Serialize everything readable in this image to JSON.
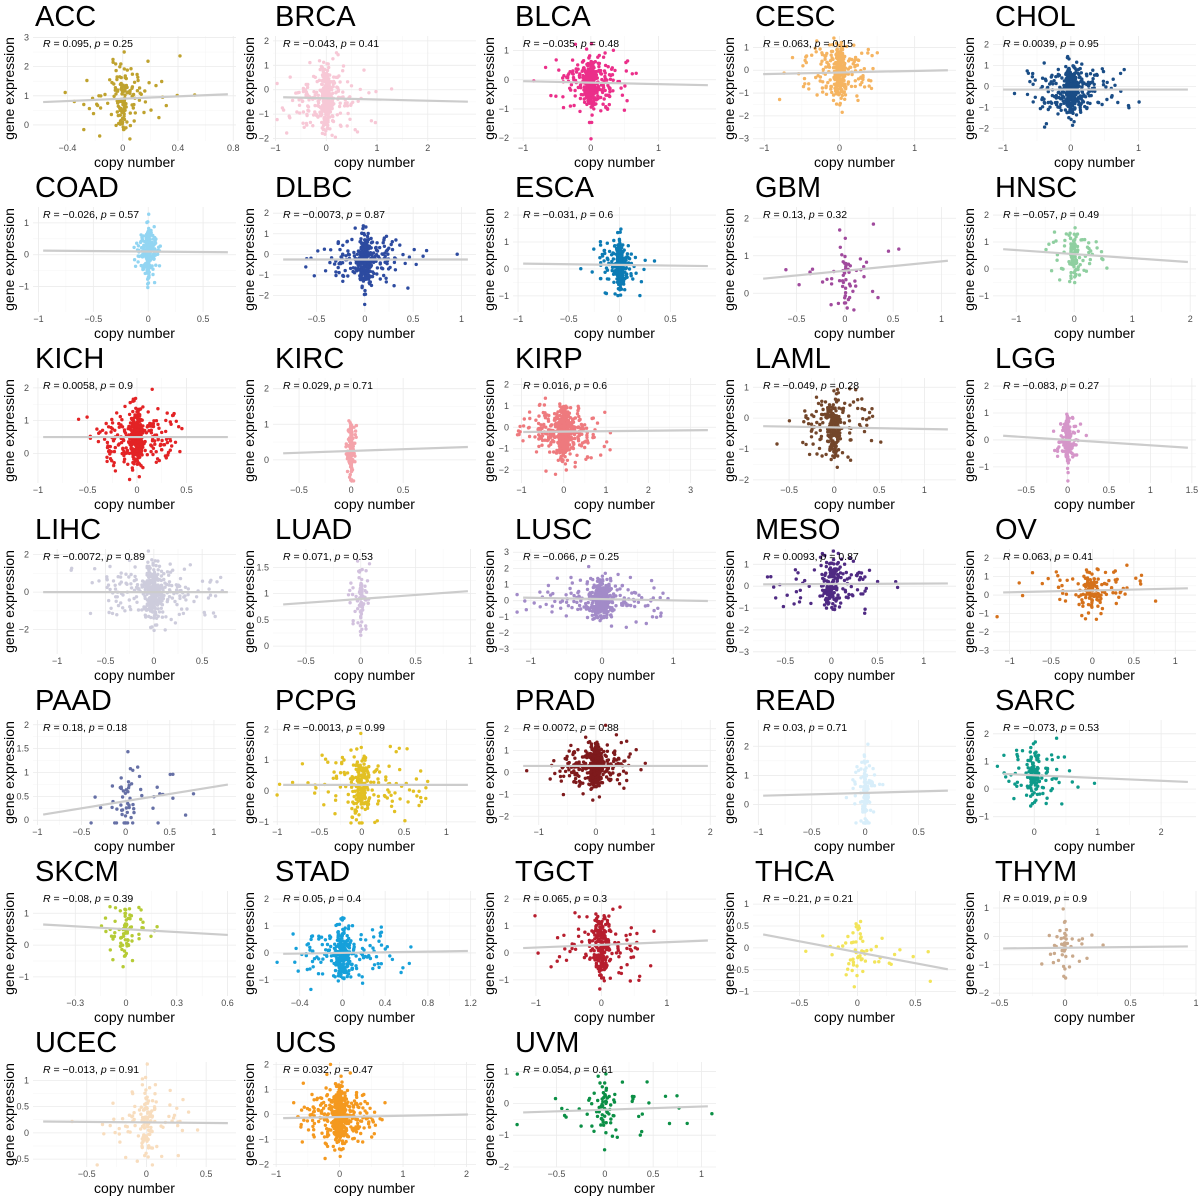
{
  "figure": {
    "xlabel": "copy number",
    "ylabel": "gene expression"
  },
  "chart_data": [
    {
      "type": "scatter",
      "title": "ACC",
      "color": "#BFA22E",
      "xlim": [
        -0.65,
        0.82
      ],
      "ylim": [
        -0.55,
        3.05
      ],
      "xticks": [
        -0.4,
        0,
        0.4,
        0.8
      ],
      "yticks": [
        0,
        1,
        2,
        3
      ],
      "r": "0.095",
      "p": "0.25",
      "slope": 0.2,
      "intercept": 0.9,
      "n": 150,
      "xspread": 0.2,
      "yspread": 0.6,
      "points_note": "approx"
    },
    {
      "type": "scatter",
      "title": "BRCA",
      "color": "#F7C8D6",
      "xlim": [
        -1.05,
        2.95
      ],
      "ylim": [
        -2.1,
        2.2
      ],
      "xticks": [
        -1,
        0,
        1,
        2
      ],
      "yticks": [
        -2,
        -1,
        0,
        1,
        2
      ],
      "r": "−0.043",
      "p": "0.41",
      "slope": -0.05,
      "intercept": -0.35,
      "n": 400,
      "xspread": 0.35,
      "yspread": 0.65
    },
    {
      "type": "scatter",
      "title": "BLCA",
      "color": "#EB2F8A",
      "xlim": [
        -1.15,
        1.85
      ],
      "ylim": [
        -2.1,
        1.5
      ],
      "xticks": [
        -1,
        0,
        1
      ],
      "yticks": [
        -2,
        -1,
        0,
        1
      ],
      "r": "−0.035",
      "p": "0.48",
      "slope": -0.05,
      "intercept": -0.1,
      "n": 400,
      "xspread": 0.25,
      "yspread": 0.45
    },
    {
      "type": "scatter",
      "title": "CESC",
      "color": "#F5B461",
      "xlim": [
        -1.15,
        1.55
      ],
      "ylim": [
        -3.1,
        1.5
      ],
      "xticks": [
        -1,
        0,
        1
      ],
      "yticks": [
        -3,
        -2,
        -1,
        0,
        1
      ],
      "r": "0.063",
      "p": "0.15",
      "slope": 0.07,
      "intercept": -0.1,
      "n": 300,
      "xspread": 0.25,
      "yspread": 0.6
    },
    {
      "type": "scatter",
      "title": "CHOL",
      "color": "#1A4D86",
      "xlim": [
        -1.15,
        1.85
      ],
      "ylim": [
        -2.6,
        2.4
      ],
      "xticks": [
        -1,
        0,
        1
      ],
      "yticks": [
        -2,
        -1,
        0,
        1,
        2
      ],
      "r": "0.0039",
      "p": "0.95",
      "slope": 0.0,
      "intercept": -0.15,
      "n": 450,
      "xspread": 0.35,
      "yspread": 0.6
    },
    {
      "type": "scatter",
      "title": "COAD",
      "color": "#92D5F2",
      "xlim": [
        -1.05,
        0.8
      ],
      "ylim": [
        -1.8,
        1.5
      ],
      "xticks": [
        -1,
        -0.5,
        0,
        0.5
      ],
      "yticks": [
        -1,
        0,
        1
      ],
      "r": "−0.026",
      "p": "0.57",
      "slope": -0.03,
      "intercept": 0.1,
      "n": 300,
      "xspread": 0.05,
      "yspread": 0.35
    },
    {
      "type": "scatter",
      "title": "DLBC",
      "color": "#2D4BA0",
      "xlim": [
        -0.95,
        1.15
      ],
      "ylim": [
        -2.8,
        2.3
      ],
      "xticks": [
        -0.5,
        0,
        0.5,
        1
      ],
      "yticks": [
        -2,
        -1,
        0,
        1,
        2
      ],
      "r": "−0.0073",
      "p": "0.87",
      "slope": 0.0,
      "intercept": -0.25,
      "n": 350,
      "xspread": 0.25,
      "yspread": 0.6
    },
    {
      "type": "scatter",
      "title": "ESCA",
      "color": "#0C7BB4",
      "xlim": [
        -1.05,
        0.95
      ],
      "ylim": [
        -1.6,
        2.3
      ],
      "xticks": [
        -1,
        -0.5,
        0,
        0.5
      ],
      "yticks": [
        -1,
        0,
        1,
        2
      ],
      "r": "−0.031",
      "p": "0.6",
      "slope": -0.05,
      "intercept": 0.15,
      "n": 300,
      "xspread": 0.1,
      "yspread": 0.45
    },
    {
      "type": "scatter",
      "title": "GBM",
      "color": "#A04A9D",
      "xlim": [
        -0.95,
        1.15
      ],
      "ylim": [
        -0.5,
        2.3
      ],
      "xticks": [
        -0.5,
        0,
        0.5,
        1
      ],
      "yticks": [
        0,
        1,
        2
      ],
      "r": "0.13",
      "p": "0.32",
      "slope": 0.25,
      "intercept": 0.6,
      "n": 60,
      "xspread": 0.3,
      "yspread": 0.5
    },
    {
      "type": "scatter",
      "title": "HNSC",
      "color": "#8FCFA0",
      "xlim": [
        -1.4,
        2.1
      ],
      "ylim": [
        -1.6,
        2.3
      ],
      "xticks": [
        -1,
        0,
        1,
        2
      ],
      "yticks": [
        -1,
        0,
        1,
        2
      ],
      "r": "−0.057",
      "p": "0.49",
      "slope": -0.15,
      "intercept": 0.55,
      "n": 120,
      "xspread": 0.25,
      "yspread": 0.45
    },
    {
      "type": "scatter",
      "title": "KICH",
      "color": "#E32325",
      "xlim": [
        -1.05,
        1.0
      ],
      "ylim": [
        -0.9,
        2.3
      ],
      "xticks": [
        -1,
        -0.5,
        0,
        0.5
      ],
      "yticks": [
        0,
        1,
        2
      ],
      "r": "0.0058",
      "p": "0.9",
      "slope": 0.0,
      "intercept": 0.5,
      "n": 450,
      "xspread": 0.2,
      "yspread": 0.4
    },
    {
      "type": "scatter",
      "title": "KIRC",
      "color": "#F4A3AA",
      "xlim": [
        -0.75,
        1.2
      ],
      "ylim": [
        -0.65,
        2.3
      ],
      "xticks": [
        -0.5,
        0,
        0.5
      ],
      "yticks": [
        0,
        1,
        2
      ],
      "r": "0.029",
      "p": "0.71",
      "slope": 0.1,
      "intercept": 0.25,
      "n": 150,
      "xspread": 0.03,
      "yspread": 0.4
    },
    {
      "type": "scatter",
      "title": "KIRP",
      "color": "#EE7A7E",
      "xlim": [
        -1.2,
        3.6
      ],
      "ylim": [
        -2.6,
        2.3
      ],
      "xticks": [
        -1,
        0,
        1,
        2,
        3
      ],
      "yticks": [
        -2,
        -1,
        0,
        1,
        2
      ],
      "r": "0.016",
      "p": "0.6",
      "slope": 0.02,
      "intercept": -0.2,
      "n": 600,
      "xspread": 0.4,
      "yspread": 0.6
    },
    {
      "type": "scatter",
      "title": "LAML",
      "color": "#73462A",
      "xlim": [
        -0.9,
        1.35
      ],
      "ylim": [
        -2.1,
        1.3
      ],
      "xticks": [
        -0.5,
        0,
        0.5,
        1
      ],
      "yticks": [
        -2,
        -1,
        0,
        1
      ],
      "r": "−0.049",
      "p": "0.28",
      "slope": -0.05,
      "intercept": -0.3,
      "n": 250,
      "xspread": 0.25,
      "yspread": 0.5
    },
    {
      "type": "scatter",
      "title": "LGG",
      "color": "#D596C9",
      "xlim": [
        -0.9,
        1.55
      ],
      "ylim": [
        -1.6,
        2.3
      ],
      "xticks": [
        -0.5,
        0,
        0.5,
        1,
        1.5
      ],
      "yticks": [
        -1,
        0,
        1,
        2
      ],
      "r": "−0.083",
      "p": "0.27",
      "slope": -0.2,
      "intercept": 0.0,
      "n": 200,
      "xspread": 0.08,
      "yspread": 0.45
    },
    {
      "type": "scatter",
      "title": "LIHC",
      "color": "#CDCCDC",
      "xlim": [
        -1.25,
        0.85
      ],
      "ylim": [
        -3.3,
        2.3
      ],
      "xticks": [
        -1,
        -0.5,
        0,
        0.5
      ],
      "yticks": [
        -2,
        0,
        2
      ],
      "r": "−0.0072",
      "p": "0.89",
      "slope": 0.0,
      "intercept": 0.0,
      "n": 400,
      "xspread": 0.3,
      "yspread": 0.7
    },
    {
      "type": "scatter",
      "title": "LUAD",
      "color": "#D2C1DE",
      "xlim": [
        -0.8,
        1.05
      ],
      "ylim": [
        -0.15,
        1.85
      ],
      "xticks": [
        -0.5,
        0,
        0.5,
        1
      ],
      "yticks": [
        0,
        0.5,
        1,
        1.5
      ],
      "r": "0.071",
      "p": "0.53",
      "slope": 0.15,
      "intercept": 0.9,
      "n": 80,
      "xspread": 0.05,
      "yspread": 0.3
    },
    {
      "type": "scatter",
      "title": "LUSC",
      "color": "#A28BC8",
      "xlim": [
        -1.25,
        1.6
      ],
      "ylim": [
        -3.3,
        3.2
      ],
      "xticks": [
        -1,
        0,
        1
      ],
      "yticks": [
        -3,
        -2,
        -1,
        0,
        1,
        2,
        3
      ],
      "r": "−0.066",
      "p": "0.25",
      "slope": -0.08,
      "intercept": 0.1,
      "n": 400,
      "xspread": 0.45,
      "yspread": 0.6
    },
    {
      "type": "scatter",
      "title": "MESO",
      "color": "#4F2A83",
      "xlim": [
        -0.85,
        1.35
      ],
      "ylim": [
        -3.1,
        1.7
      ],
      "xticks": [
        -0.5,
        0,
        0.5,
        1
      ],
      "yticks": [
        -3,
        -2,
        -1,
        0,
        1
      ],
      "r": "0.0093",
      "p": "0.87",
      "slope": 0.02,
      "intercept": 0.1,
      "n": 200,
      "xspread": 0.3,
      "yspread": 0.6
    },
    {
      "type": "scatter",
      "title": "OV",
      "color": "#D5711B",
      "xlim": [
        -1.2,
        1.25
      ],
      "ylim": [
        -3.2,
        2.5
      ],
      "xticks": [
        -1,
        -0.5,
        0,
        0.5,
        1
      ],
      "yticks": [
        -3,
        -2,
        -1,
        0,
        1,
        2
      ],
      "r": "0.063",
      "p": "0.41",
      "slope": 0.1,
      "intercept": 0.25,
      "n": 150,
      "xspread": 0.35,
      "yspread": 0.6
    },
    {
      "type": "scatter",
      "title": "PAAD",
      "color": "#6670A6",
      "xlim": [
        -1.05,
        1.25
      ],
      "ylim": [
        -0.1,
        2.1
      ],
      "xticks": [
        -1,
        -0.5,
        0,
        0.5,
        1
      ],
      "yticks": [
        0,
        0.5,
        1,
        1.5,
        2
      ],
      "r": "0.18",
      "p": "0.18",
      "slope": 0.3,
      "intercept": 0.4,
      "n": 60,
      "xspread": 0.35,
      "yspread": 0.4
    },
    {
      "type": "scatter",
      "title": "PCPG",
      "color": "#E2C023",
      "xlim": [
        -1.05,
        1.35
      ],
      "ylim": [
        -1.1,
        2.3
      ],
      "xticks": [
        -1,
        -0.5,
        0,
        0.5,
        1
      ],
      "yticks": [
        -1,
        0,
        1,
        2
      ],
      "r": "−0.0013",
      "p": "0.99",
      "slope": 0.0,
      "intercept": 0.2,
      "n": 250,
      "xspread": 0.35,
      "yspread": 0.5
    },
    {
      "type": "scatter",
      "title": "PRAD",
      "color": "#7E1A1C",
      "xlim": [
        -1.45,
        2.1
      ],
      "ylim": [
        -2.4,
        2.4
      ],
      "xticks": [
        -1,
        0,
        1,
        2
      ],
      "yticks": [
        -2,
        -1,
        0,
        1,
        2
      ],
      "r": "0.0072",
      "p": "0.88",
      "slope": 0.0,
      "intercept": 0.3,
      "n": 500,
      "xspread": 0.35,
      "yspread": 0.5
    },
    {
      "type": "scatter",
      "title": "READ",
      "color": "#D8EEFA",
      "xlim": [
        -1.05,
        0.85
      ],
      "ylim": [
        -0.7,
        2.9
      ],
      "xticks": [
        -1,
        -0.5,
        0,
        0.5
      ],
      "yticks": [
        0,
        1,
        2
      ],
      "r": "0.03",
      "p": "0.71",
      "slope": 0.1,
      "intercept": 0.4,
      "n": 150,
      "xspread": 0.05,
      "yspread": 0.6
    },
    {
      "type": "scatter",
      "title": "SARC",
      "color": "#0E9A8A",
      "xlim": [
        -0.65,
        2.55
      ],
      "ylim": [
        -1.3,
        2.5
      ],
      "xticks": [
        0,
        1,
        2
      ],
      "yticks": [
        -1,
        0,
        1,
        2
      ],
      "r": "−0.073",
      "p": "0.53",
      "slope": -0.1,
      "intercept": 0.5,
      "n": 150,
      "xspread": 0.3,
      "yspread": 0.5
    },
    {
      "type": "scatter",
      "title": "SKCM",
      "color": "#B6CB35",
      "xlim": [
        -0.55,
        0.65
      ],
      "ylim": [
        -1.6,
        1.7
      ],
      "xticks": [
        -0.3,
        0,
        0.3,
        0.6
      ],
      "yticks": [
        -1,
        0,
        1
      ],
      "r": "−0.08",
      "p": "0.39",
      "slope": -0.3,
      "intercept": 0.5,
      "n": 80,
      "xspread": 0.08,
      "yspread": 0.45
    },
    {
      "type": "scatter",
      "title": "STAD",
      "color": "#16A0DA",
      "xlim": [
        -0.65,
        1.25
      ],
      "ylim": [
        -1.6,
        2.3
      ],
      "xticks": [
        -0.4,
        0,
        0.4,
        0.8,
        1.2
      ],
      "yticks": [
        -1,
        0,
        1,
        2
      ],
      "r": "0.05",
      "p": "0.4",
      "slope": 0.06,
      "intercept": 0.0,
      "n": 300,
      "xspread": 0.25,
      "yspread": 0.5
    },
    {
      "type": "scatter",
      "title": "TGCT",
      "color": "#B71E2E",
      "xlim": [
        -1.35,
        1.75
      ],
      "ylim": [
        -1.6,
        2.3
      ],
      "xticks": [
        -1,
        0,
        1
      ],
      "yticks": [
        -1,
        0,
        1,
        2
      ],
      "r": "0.065",
      "p": "0.3",
      "slope": 0.1,
      "intercept": 0.3,
      "n": 250,
      "xspread": 0.4,
      "yspread": 0.6
    },
    {
      "type": "scatter",
      "title": "THCA",
      "color": "#F2E45A",
      "xlim": [
        -0.9,
        0.85
      ],
      "ylim": [
        -1.1,
        1.3
      ],
      "xticks": [
        -0.5,
        0,
        0.5
      ],
      "yticks": [
        -1,
        -0.5,
        0,
        0.5,
        1
      ],
      "r": "−0.21",
      "p": "0.21",
      "slope": -0.5,
      "intercept": -0.1,
      "n": 60,
      "xspread": 0.3,
      "yspread": 0.4
    },
    {
      "type": "scatter",
      "title": "THYM",
      "color": "#C9A98C",
      "xlim": [
        -0.55,
        1.0
      ],
      "ylim": [
        -2.1,
        1.6
      ],
      "xticks": [
        -0.5,
        0,
        0.5,
        1
      ],
      "yticks": [
        -2,
        -1,
        0,
        1
      ],
      "r": "0.019",
      "p": "0.9",
      "slope": 0.05,
      "intercept": -0.4,
      "n": 50,
      "xspread": 0.1,
      "yspread": 0.5
    },
    {
      "type": "scatter",
      "title": "UCEC",
      "color": "#F8DDBE",
      "xlim": [
        -0.95,
        0.75
      ],
      "ylim": [
        -0.65,
        1.35
      ],
      "xticks": [
        -0.5,
        0,
        0.5
      ],
      "yticks": [
        -0.5,
        0,
        0.5,
        1
      ],
      "r": "−0.013",
      "p": "0.91",
      "slope": -0.02,
      "intercept": 0.2,
      "n": 150,
      "xspread": 0.2,
      "yspread": 0.35
    },
    {
      "type": "scatter",
      "title": "UCS",
      "color": "#F4991F",
      "xlim": [
        -1.05,
        2.15
      ],
      "ylim": [
        -2.1,
        2.1
      ],
      "xticks": [
        -1,
        0,
        1,
        2
      ],
      "yticks": [
        -2,
        -1,
        0,
        1,
        2
      ],
      "r": "0.032",
      "p": "0.47",
      "slope": 0.05,
      "intercept": -0.1,
      "n": 500,
      "xspread": 0.3,
      "yspread": 0.6
    },
    {
      "type": "scatter",
      "title": "UVM",
      "color": "#0B8F45",
      "xlim": [
        -0.95,
        1.15
      ],
      "ylim": [
        -2.0,
        1.3
      ],
      "xticks": [
        -0.5,
        0,
        0.5,
        1
      ],
      "yticks": [
        -2,
        -1,
        0,
        1
      ],
      "r": "0.054",
      "p": "0.61",
      "slope": 0.1,
      "intercept": -0.2,
      "n": 90,
      "xspread": 0.35,
      "yspread": 0.5
    }
  ]
}
